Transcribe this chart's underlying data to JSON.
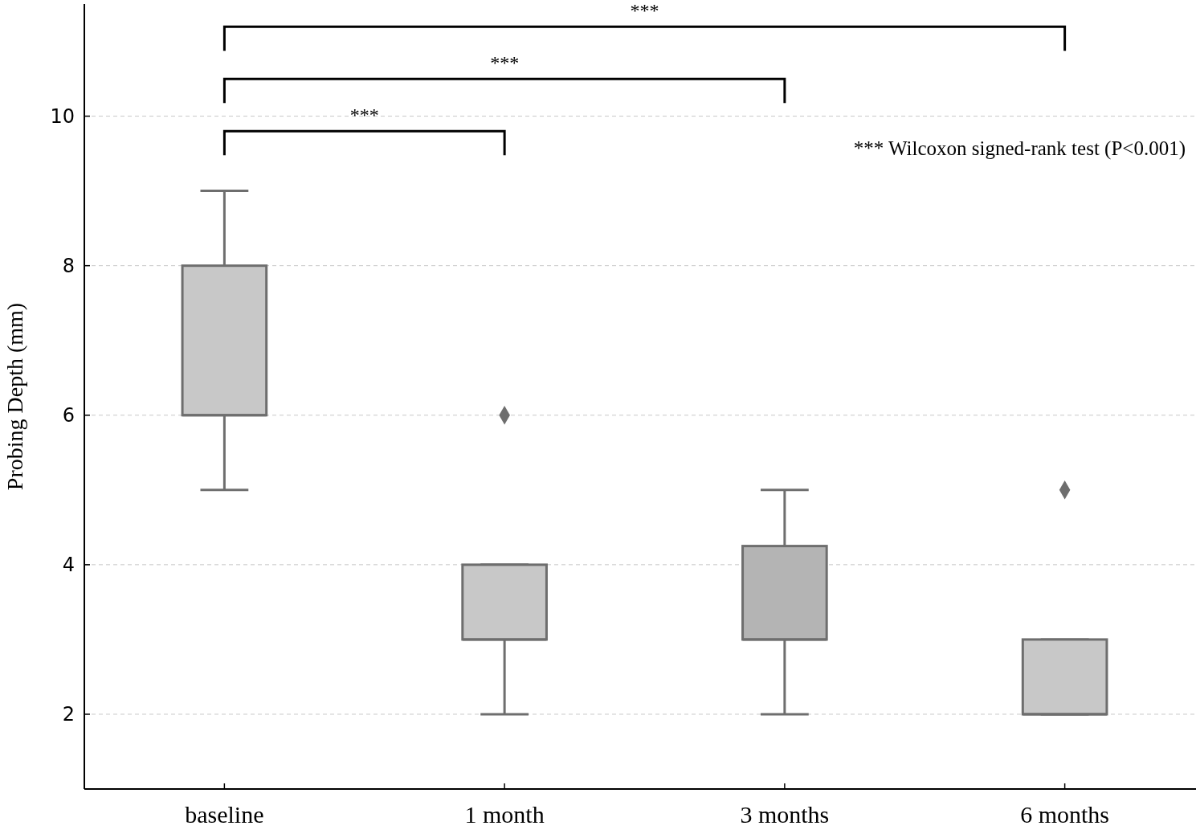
{
  "chart_data": {
    "type": "box",
    "ylabel": "Probing Depth (mm)",
    "categories": [
      "baseline",
      "1 month",
      "3 months",
      "6 months"
    ],
    "boxes": [
      {
        "low": 5,
        "q1": 6,
        "median": 6,
        "q3": 8,
        "high": 9
      },
      {
        "low": 2,
        "q1": 3,
        "median": 3,
        "q3": 4,
        "high": 4,
        "outliers": [
          6
        ]
      },
      {
        "low": 2,
        "q1": 3,
        "median": 3,
        "q3": 4.25,
        "high": 5
      },
      {
        "low": 2,
        "q1": 2,
        "median": 2,
        "q3": 3,
        "high": 3,
        "outliers": [
          5
        ]
      }
    ],
    "colors": [
      "#c8c8c8",
      "#c8c8c8",
      "#b4b4b4",
      "#c8c8c8"
    ],
    "ylim": [
      1,
      11.5
    ],
    "yticks": [
      2,
      4,
      6,
      8,
      10
    ],
    "grid": "y",
    "marker": "diamond",
    "annotations": [
      "***",
      "***",
      "***",
      "*** Wilcoxon signed-rank test (P<0.001)"
    ]
  }
}
